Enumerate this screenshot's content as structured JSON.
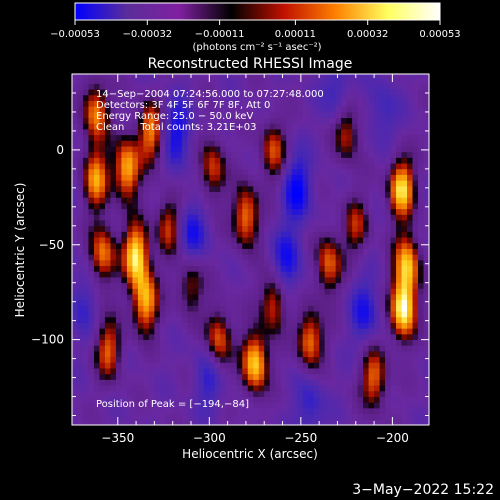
{
  "chart_data": {
    "type": "heatmap",
    "title": "Reconstructed RHESSI Image",
    "xlabel": "Heliocentric X (arcsec)",
    "ylabel": "Heliocentric Y (arcsec)",
    "xlim": [
      -375,
      -180
    ],
    "ylim": [
      -145,
      40
    ],
    "x_ticks": [
      -350,
      -300,
      -250,
      -200
    ],
    "x_tick_labels": [
      "−350",
      "−300",
      "−250",
      "−200"
    ],
    "y_ticks": [
      0,
      -50,
      -100
    ],
    "y_tick_labels": [
      "0",
      "−50",
      "−100"
    ],
    "colorbar": {
      "min": -0.00053,
      "max": 0.00053,
      "tick_values": [
        -0.00053,
        -0.00032,
        -0.00011,
        0.00011,
        0.00032,
        0.00053
      ],
      "tick_labels": [
        "−0.00053",
        "−0.00032",
        "−0.00011",
        "0.00011",
        "0.00032",
        "0.00053"
      ],
      "unit_text": "(photons cm⁻² s⁻¹ asec⁻²)",
      "colors": [
        "#0000ff",
        "#5a2d9a",
        "#8020a0",
        "#000000",
        "#c01000",
        "#ff8000",
        "#ffff60",
        "#ffffff"
      ]
    },
    "annotations": [
      "14−Sep−2004 07:24:56.000 to 07:27:48.000",
      "Detectors: 3F 4F 5F 6F 7F 8F, Att 0",
      "Energy Range: 25.0 − 50.0 keV",
      "Clean     Total counts: 3.21E+03"
    ],
    "peak_text": "Position of Peak = [−194,−84]",
    "peak": [
      -194,
      -84
    ],
    "bright_sources": [
      [
        -362,
        20,
        0.7
      ],
      [
        -362,
        -15,
        0.72
      ],
      [
        -358,
        -55,
        0.68
      ],
      [
        -345,
        -10,
        0.85
      ],
      [
        -340,
        -55,
        0.95
      ],
      [
        -335,
        -80,
        0.82
      ],
      [
        -332,
        10,
        0.7
      ],
      [
        -355,
        -105,
        0.6
      ],
      [
        -322,
        -40,
        0.55
      ],
      [
        -310,
        -70,
        0.5
      ],
      [
        -298,
        -10,
        0.55
      ],
      [
        -295,
        -100,
        0.65
      ],
      [
        -280,
        -35,
        0.72
      ],
      [
        -275,
        -112,
        0.9
      ],
      [
        -265,
        0,
        0.55
      ],
      [
        -265,
        -80,
        0.6
      ],
      [
        -245,
        -100,
        0.7
      ],
      [
        -235,
        -60,
        0.62
      ],
      [
        -225,
        10,
        0.55
      ],
      [
        -195,
        -20,
        0.9
      ],
      [
        -192,
        -60,
        0.8
      ],
      [
        -194,
        -84,
        1.0
      ],
      [
        -210,
        -120,
        0.65
      ],
      [
        -220,
        -40,
        0.45
      ]
    ],
    "dark_sources": [
      [
        -318,
        10,
        0.8
      ],
      [
        -310,
        -45,
        0.8
      ],
      [
        -300,
        -120,
        0.6
      ],
      [
        -252,
        -20,
        0.9
      ],
      [
        -258,
        -60,
        0.8
      ],
      [
        -245,
        -135,
        0.6
      ],
      [
        -215,
        -85,
        0.7
      ],
      [
        -205,
        20,
        0.5
      ],
      [
        -370,
        -80,
        0.5
      ],
      [
        -230,
        30,
        0.6
      ]
    ]
  },
  "footer": {
    "timestamp": "3−May−2022 15:22"
  }
}
